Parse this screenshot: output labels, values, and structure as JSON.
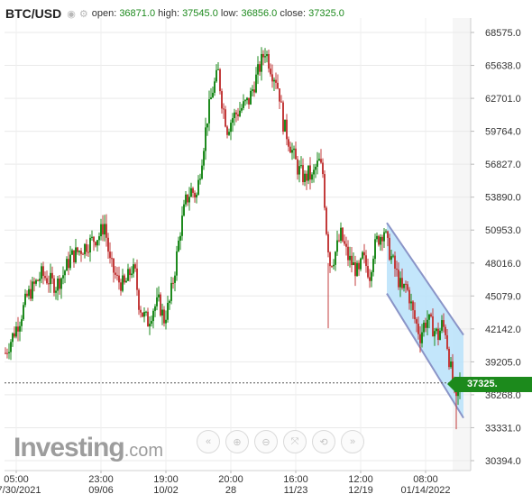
{
  "header": {
    "symbol": "BTC/USD",
    "open_label": "open:",
    "open": "36871.0",
    "high_label": "high:",
    "high": "37545.0",
    "low_label": "low:",
    "low": "36856.0",
    "close_label": "close:",
    "close": "37325.0"
  },
  "logo": {
    "main": "Investing",
    "suffix": ".com"
  },
  "current_price_label": "37325.",
  "toolbar": {
    "icons": [
      "chevron-left-icon",
      "zoom-in-icon",
      "zoom-out-icon",
      "fit-icon",
      "zoom-reset-icon",
      "chevron-right-icon"
    ],
    "glyphs": [
      "«",
      "⊕",
      "⊖",
      "⤧",
      "⟲",
      "»"
    ]
  },
  "colors": {
    "up": "#1e8a1e",
    "down": "#c33c3c",
    "channel_fill": "#b9e2fa",
    "channel_line": "#8a94c7",
    "price_badge": "#1c8a1c"
  },
  "chart_data": {
    "type": "candlestick",
    "ylim": [
      30394,
      69000
    ],
    "y_ticks": [
      68575.0,
      65638.0,
      62701.0,
      59764.0,
      56827.0,
      53890.0,
      50953.0,
      48016.0,
      45079.0,
      42142.0,
      39205.0,
      36268.0,
      33331.0,
      30394.0
    ],
    "y_tick_labels": [
      "68575.0",
      "65638.0",
      "62701.0",
      "59764.0",
      "56827.0",
      "53890.0",
      "50953.0",
      "48016.0",
      "45079.0",
      "42142.0",
      "39205.0",
      "36268.0",
      "33331.0",
      "30394.0"
    ],
    "x_ticks": [
      {
        "time": "05:00",
        "date": "07/30/2021"
      },
      {
        "time": "23:00",
        "date": "09/06"
      },
      {
        "time": "19:00",
        "date": "10/02"
      },
      {
        "time": "20:00",
        "date": "28"
      },
      {
        "time": "16:00",
        "date": "11/23"
      },
      {
        "time": "12:00",
        "date": "12/19"
      },
      {
        "time": "08:00",
        "date": "01/14/2022"
      }
    ],
    "price_path": [
      [
        0,
        40000
      ],
      [
        8,
        41500
      ],
      [
        16,
        43000
      ],
      [
        24,
        45000
      ],
      [
        32,
        46000
      ],
      [
        40,
        47000
      ],
      [
        48,
        46500
      ],
      [
        56,
        46000
      ],
      [
        64,
        47000
      ],
      [
        72,
        48500
      ],
      [
        80,
        49000
      ],
      [
        88,
        49500
      ],
      [
        96,
        50000
      ],
      [
        104,
        50500
      ],
      [
        110,
        51500
      ],
      [
        116,
        48000
      ],
      [
        124,
        46500
      ],
      [
        132,
        46000
      ],
      [
        140,
        47500
      ],
      [
        144,
        47000
      ],
      [
        148,
        44500
      ],
      [
        152,
        43500
      ],
      [
        158,
        42800
      ],
      [
        164,
        44000
      ],
      [
        170,
        44500
      ],
      [
        176,
        43000
      ],
      [
        182,
        44500
      ],
      [
        188,
        47500
      ],
      [
        194,
        51000
      ],
      [
        200,
        53500
      ],
      [
        206,
        54500
      ],
      [
        212,
        54000
      ],
      [
        218,
        57500
      ],
      [
        224,
        61000
      ],
      [
        230,
        63500
      ],
      [
        236,
        65000
      ],
      [
        240,
        62500
      ],
      [
        246,
        60000
      ],
      [
        252,
        61000
      ],
      [
        258,
        61500
      ],
      [
        264,
        62000
      ],
      [
        270,
        62500
      ],
      [
        276,
        64000
      ],
      [
        282,
        65500
      ],
      [
        288,
        67000
      ],
      [
        292,
        66000
      ],
      [
        296,
        65000
      ],
      [
        300,
        64500
      ],
      [
        304,
        63000
      ],
      [
        308,
        60500
      ],
      [
        312,
        59500
      ],
      [
        316,
        58500
      ],
      [
        320,
        57500
      ],
      [
        324,
        56500
      ],
      [
        328,
        56000
      ],
      [
        332,
        55500
      ],
      [
        336,
        56000
      ],
      [
        340,
        55500
      ],
      [
        344,
        56500
      ],
      [
        348,
        57000
      ],
      [
        352,
        56000
      ],
      [
        356,
        51000
      ],
      [
        360,
        48000
      ],
      [
        364,
        48500
      ],
      [
        368,
        49500
      ],
      [
        372,
        50500
      ],
      [
        376,
        49500
      ],
      [
        380,
        48500
      ],
      [
        384,
        48000
      ],
      [
        388,
        47500
      ],
      [
        392,
        47000
      ],
      [
        396,
        48500
      ],
      [
        400,
        47800
      ],
      [
        404,
        47000
      ],
      [
        408,
        49000
      ],
      [
        412,
        50000
      ],
      [
        416,
        50500
      ],
      [
        420,
        51000
      ],
      [
        424,
        49500
      ],
      [
        428,
        48500
      ],
      [
        432,
        47500
      ],
      [
        436,
        46500
      ],
      [
        440,
        45500
      ],
      [
        444,
        46000
      ],
      [
        448,
        45000
      ],
      [
        452,
        43500
      ],
      [
        456,
        42500
      ],
      [
        460,
        41500
      ],
      [
        464,
        42500
      ],
      [
        468,
        43000
      ],
      [
        472,
        42500
      ],
      [
        476,
        42000
      ],
      [
        480,
        41500
      ],
      [
        484,
        42500
      ],
      [
        488,
        42000
      ],
      [
        492,
        39500
      ],
      [
        496,
        37500
      ],
      [
        500,
        35500
      ],
      [
        504,
        37325
      ]
    ],
    "annotations": {
      "channel_upper": [
        {
          "x": 424,
          "y": 51600
        },
        {
          "x": 509,
          "y": 41600
        }
      ],
      "channel_lower": [
        {
          "x": 424,
          "y": 45300
        },
        {
          "x": 509,
          "y": 34200
        }
      ],
      "last_price_line": 37325.0
    }
  }
}
